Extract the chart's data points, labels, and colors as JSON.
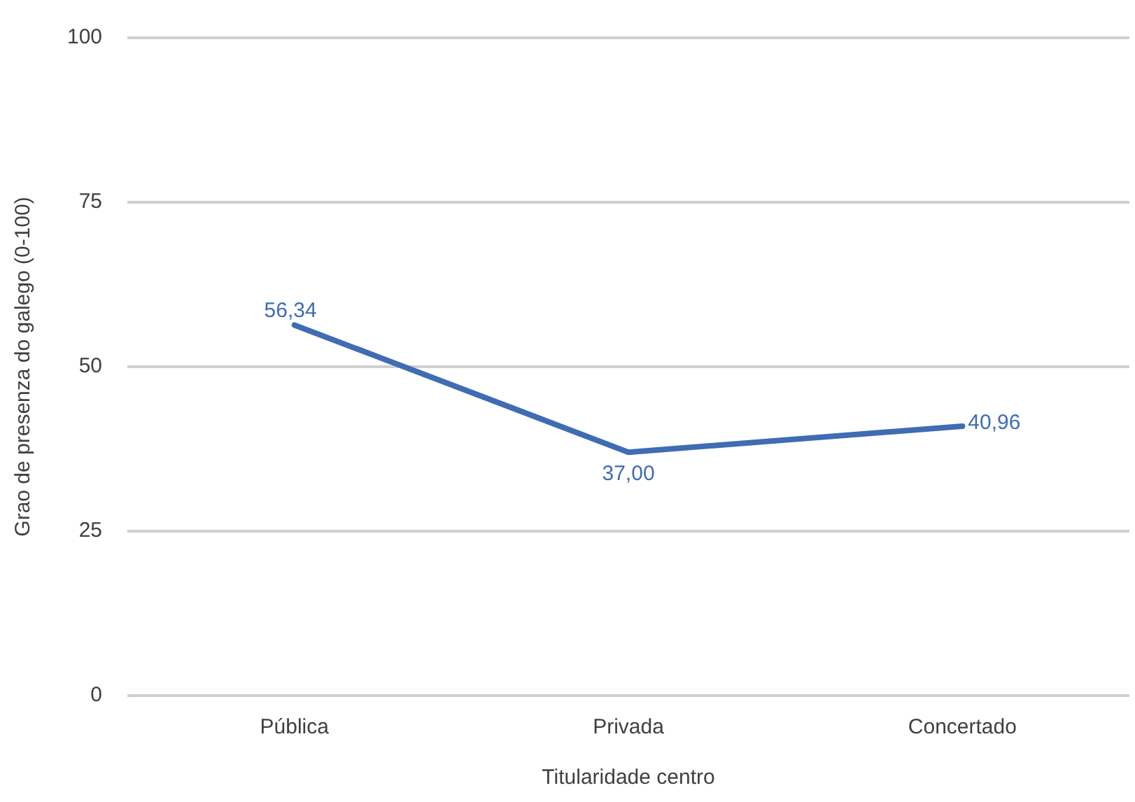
{
  "chart_data": {
    "type": "line",
    "xlabel": "Titularidade centro",
    "ylabel": "Grao de presenza do galego (0-100)",
    "categories": [
      "Pública",
      "Privada",
      "Concertado"
    ],
    "series": [
      {
        "color": "#3f6cb3",
        "values": [
          56.34,
          37.0,
          40.96
        ],
        "value_labels": [
          "56,34",
          "37,00",
          "40,96"
        ]
      }
    ],
    "ylim": [
      0,
      100
    ],
    "yticks": [
      0,
      25,
      50,
      75,
      100
    ],
    "grid": "y",
    "legend": false,
    "marker": "none",
    "line_style": "solid"
  }
}
